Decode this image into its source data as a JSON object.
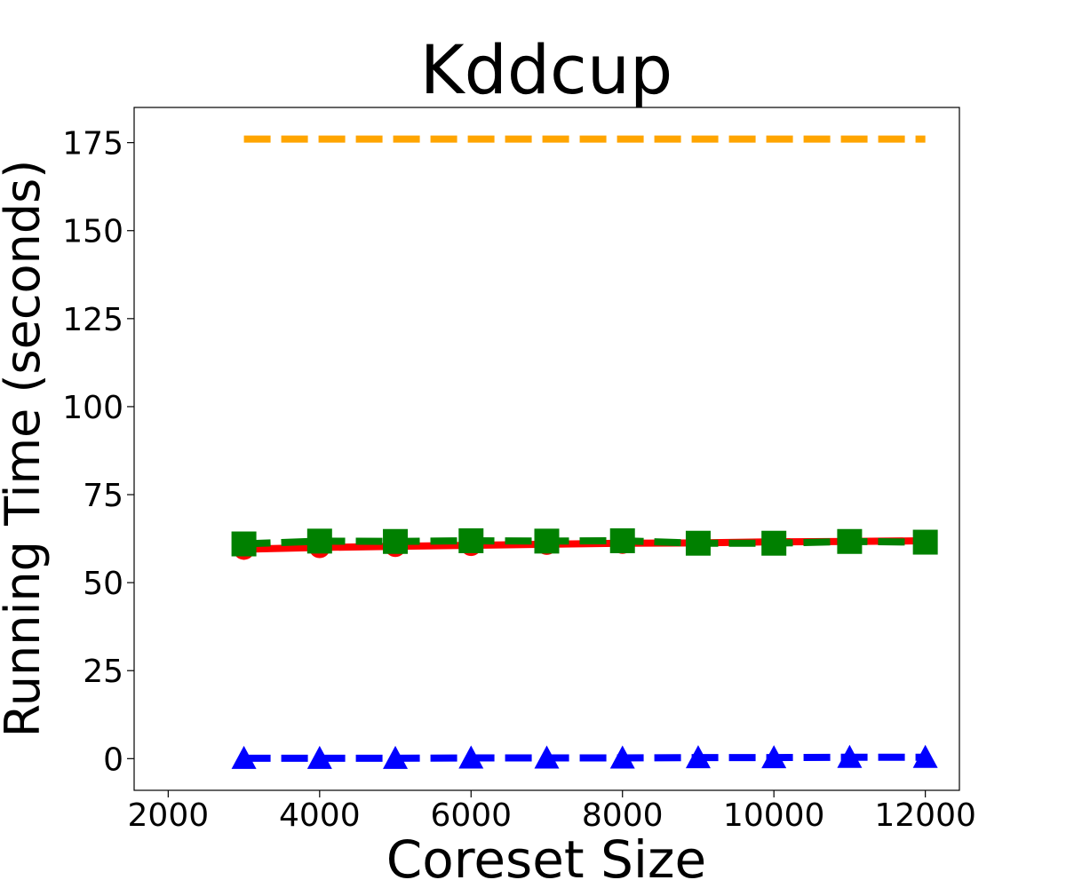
{
  "chart_data": {
    "type": "line",
    "title": "Kddcup",
    "xlabel": "Coreset Size",
    "ylabel": "Running Time (seconds)",
    "xlim": [
      1550,
      12450
    ],
    "ylim": [
      -9,
      185
    ],
    "xticks": [
      2000,
      4000,
      6000,
      8000,
      10000,
      12000
    ],
    "yticks": [
      0,
      25,
      50,
      75,
      100,
      125,
      150,
      175
    ],
    "x": [
      3000,
      4000,
      5000,
      6000,
      7000,
      8000,
      9000,
      10000,
      11000,
      12000
    ],
    "series": [
      {
        "color": "#ffa500",
        "dash": "dashed",
        "marker": "none",
        "values": [
          176,
          176,
          176,
          176,
          176,
          176,
          176,
          176,
          176,
          176
        ]
      },
      {
        "color": "#ff0000",
        "dash": "solid",
        "marker": "circle",
        "values": [
          59.5,
          60,
          60.3,
          60.6,
          60.9,
          61.2,
          61.3,
          61.6,
          61.7,
          61.9
        ]
      },
      {
        "color": "#008000",
        "dash": "dashed",
        "marker": "square",
        "values": [
          61,
          61.8,
          61.7,
          61.9,
          61.8,
          61.9,
          61.2,
          61.2,
          61.7,
          61.5
        ]
      },
      {
        "color": "#0000ff",
        "dash": "dashed",
        "marker": "triangle",
        "values": [
          0.1,
          0.1,
          0.1,
          0.2,
          0.2,
          0.2,
          0.3,
          0.3,
          0.4,
          0.4
        ]
      }
    ]
  }
}
